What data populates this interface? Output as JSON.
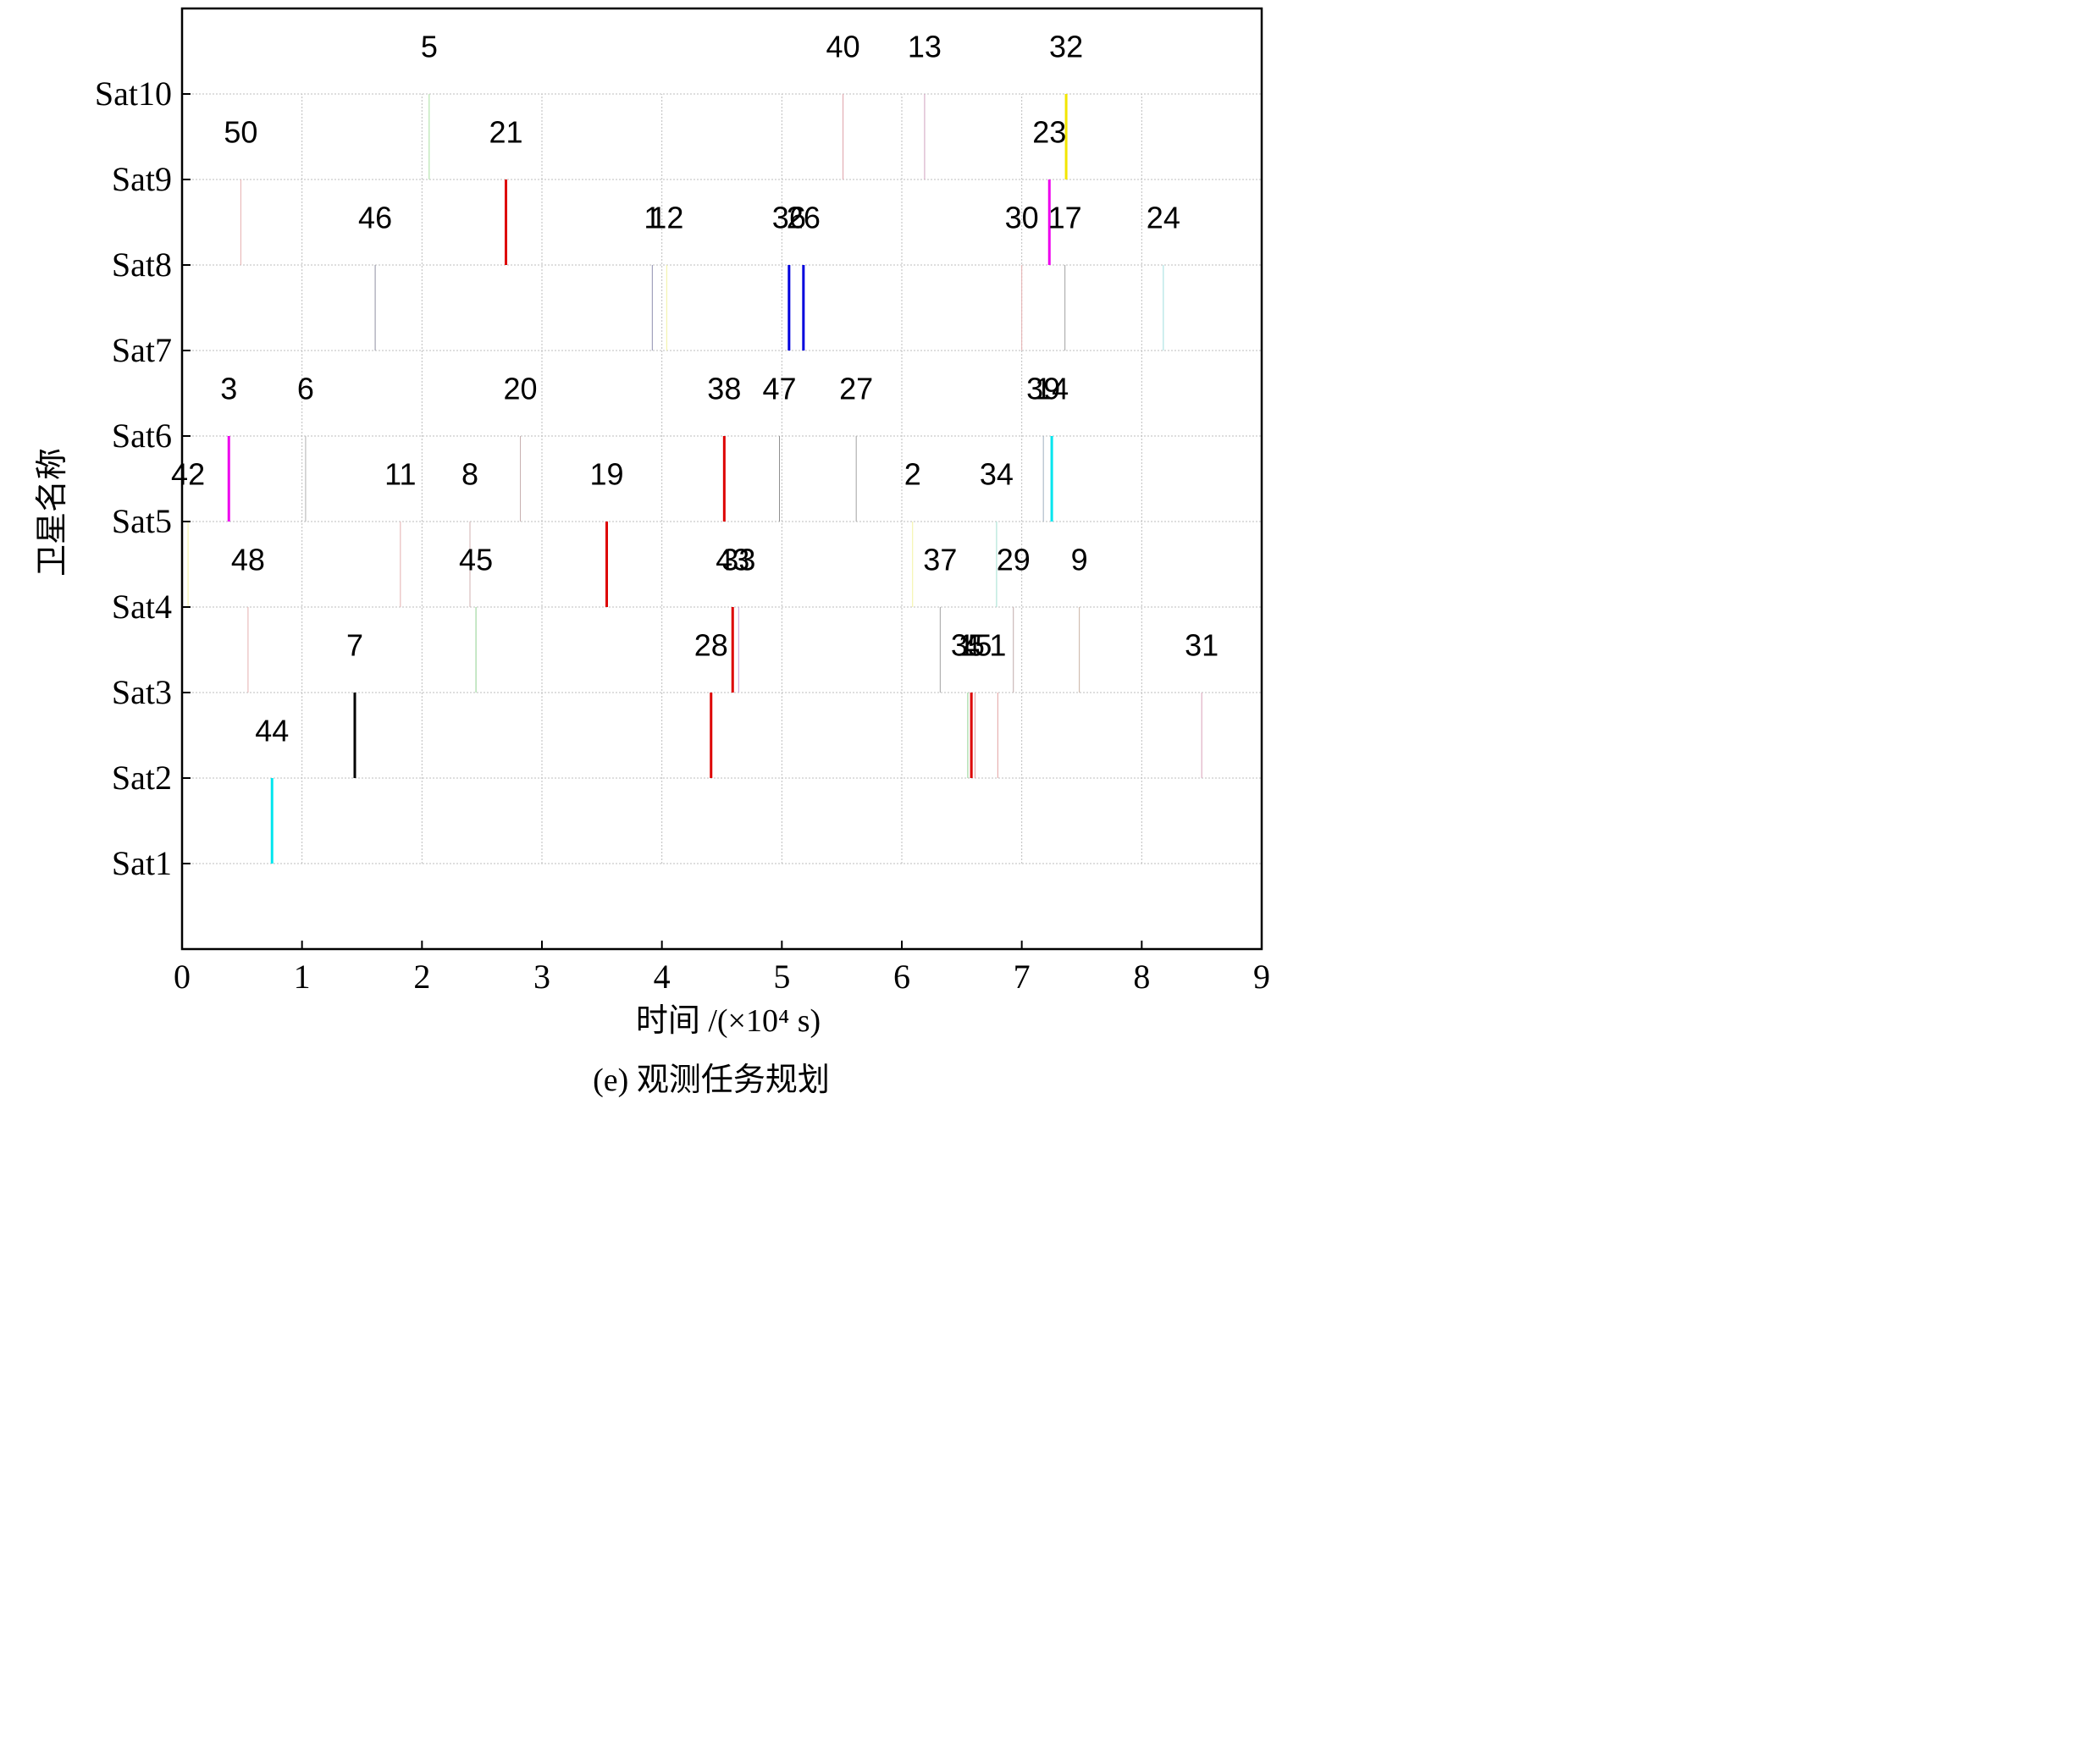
{
  "chart_data": {
    "type": "scatter",
    "caption": "(e) 观测任务规划",
    "xlabel": "时间 /(×10⁴ s)",
    "ylabel": "卫星名称",
    "xlim": [
      0,
      9
    ],
    "xticks": [
      0,
      1,
      2,
      3,
      4,
      5,
      6,
      7,
      8,
      9
    ],
    "xtick_labels": [
      "0",
      "1",
      "2",
      "3",
      "4",
      "5",
      "6",
      "7",
      "8",
      "9"
    ],
    "ylim": [
      0,
      11
    ],
    "yticks": [
      1,
      2,
      3,
      4,
      5,
      6,
      7,
      8,
      9,
      10
    ],
    "ytick_labels": [
      "Sat1",
      "Sat2",
      "Sat3",
      "Sat4",
      "Sat5",
      "Sat6",
      "Sat7",
      "Sat8",
      "Sat9",
      "Sat10"
    ],
    "grid": true,
    "tasks": [
      {
        "id": "44",
        "sat": 1,
        "t": 0.75,
        "color": "#00e5ee",
        "width": 3
      },
      {
        "id": "7",
        "sat": 2,
        "t": 1.44,
        "color": "#000000",
        "width": 3
      },
      {
        "id": "28",
        "sat": 2,
        "t": 4.41,
        "color": "#dd0000",
        "width": 3
      },
      {
        "id": "35",
        "sat": 2,
        "t": 6.55,
        "color": "#8fd18f",
        "width": 1
      },
      {
        "id": "4",
        "sat": 2,
        "t": 6.58,
        "color": "#dd0000",
        "width": 3
      },
      {
        "id": "15",
        "sat": 2,
        "t": 6.61,
        "color": "#e3a0a0",
        "width": 1
      },
      {
        "id": "1",
        "sat": 2,
        "t": 6.8,
        "color": "#e3a0a0",
        "width": 1
      },
      {
        "id": "31",
        "sat": 2,
        "t": 8.5,
        "color": "#d9a0b8",
        "width": 1
      },
      {
        "id": "48",
        "sat": 3,
        "t": 0.55,
        "color": "#e6b0b0",
        "width": 1
      },
      {
        "id": "45",
        "sat": 3,
        "t": 2.45,
        "color": "#8fd18f",
        "width": 1
      },
      {
        "id": "43",
        "sat": 3,
        "t": 4.59,
        "color": "#dd0000",
        "width": 3
      },
      {
        "id": "33",
        "sat": 3,
        "t": 4.64,
        "color": "#c8a0d8",
        "width": 1
      },
      {
        "id": "37",
        "sat": 3,
        "t": 6.32,
        "color": "#a0a0a0",
        "width": 1
      },
      {
        "id": "29",
        "sat": 3,
        "t": 6.93,
        "color": "#c0a8a8",
        "width": 1
      },
      {
        "id": "9",
        "sat": 3,
        "t": 7.48,
        "color": "#c8b0a0",
        "width": 1
      },
      {
        "id": "42",
        "sat": 4,
        "t": 0.05,
        "color": "#f2f2a0",
        "width": 1
      },
      {
        "id": "11",
        "sat": 4,
        "t": 1.82,
        "color": "#e6b0b0",
        "width": 1
      },
      {
        "id": "8",
        "sat": 4,
        "t": 2.4,
        "color": "#d0b0b0",
        "width": 1
      },
      {
        "id": "19",
        "sat": 4,
        "t": 3.54,
        "color": "#dd0000",
        "width": 3
      },
      {
        "id": "2",
        "sat": 4,
        "t": 6.09,
        "color": "#f2f2a0",
        "width": 1
      },
      {
        "id": "34",
        "sat": 4,
        "t": 6.79,
        "color": "#a0e0d0",
        "width": 1
      },
      {
        "id": "3",
        "sat": 5,
        "t": 0.39,
        "color": "#ee00ee",
        "width": 3
      },
      {
        "id": "6",
        "sat": 5,
        "t": 1.03,
        "color": "#b0b0b0",
        "width": 1
      },
      {
        "id": "20",
        "sat": 5,
        "t": 2.82,
        "color": "#c8b0b0",
        "width": 1
      },
      {
        "id": "38",
        "sat": 5,
        "t": 4.52,
        "color": "#dd0000",
        "width": 3
      },
      {
        "id": "47",
        "sat": 5,
        "t": 4.98,
        "color": "#909090",
        "width": 1
      },
      {
        "id": "27",
        "sat": 5,
        "t": 5.62,
        "color": "#a0a0a0",
        "width": 1
      },
      {
        "id": "39",
        "sat": 5,
        "t": 7.18,
        "color": "#a0b0c0",
        "width": 1
      },
      {
        "id": "14",
        "sat": 5,
        "t": 7.25,
        "color": "#00e5ee",
        "width": 3
      },
      {
        "id": "46",
        "sat": 7,
        "t": 1.61,
        "color": "#9090a0",
        "width": 1
      },
      {
        "id": "1",
        "sat": 7,
        "t": 3.92,
        "color": "#9090b0",
        "width": 1
      },
      {
        "id": "12",
        "sat": 7,
        "t": 4.04,
        "color": "#f2f2a0",
        "width": 1
      },
      {
        "id": "36",
        "sat": 7,
        "t": 5.06,
        "color": "#0000dd",
        "width": 3
      },
      {
        "id": "26",
        "sat": 7,
        "t": 5.18,
        "color": "#0000dd",
        "width": 3
      },
      {
        "id": "30",
        "sat": 7,
        "t": 7.0,
        "color": "#e6b0b0",
        "width": 1
      },
      {
        "id": "17",
        "sat": 7,
        "t": 7.36,
        "color": "#a0a0a0",
        "width": 1
      },
      {
        "id": "24",
        "sat": 7,
        "t": 8.18,
        "color": "#a0e0e0",
        "width": 1
      },
      {
        "id": "50",
        "sat": 8,
        "t": 0.49,
        "color": "#e6b0b0",
        "width": 1
      },
      {
        "id": "21",
        "sat": 8,
        "t": 2.7,
        "color": "#dd0000",
        "width": 3
      },
      {
        "id": "23",
        "sat": 8,
        "t": 7.23,
        "color": "#ee00ee",
        "width": 3
      },
      {
        "id": "5",
        "sat": 9,
        "t": 2.06,
        "color": "#a8e0a0",
        "width": 1
      },
      {
        "id": "40",
        "sat": 9,
        "t": 5.51,
        "color": "#e0a0a8",
        "width": 1
      },
      {
        "id": "13",
        "sat": 9,
        "t": 6.19,
        "color": "#d0a0c0",
        "width": 1
      },
      {
        "id": "32",
        "sat": 9,
        "t": 7.37,
        "color": "#f2e600",
        "width": 3
      }
    ],
    "colors": {
      "axis": "#000000",
      "grid": "#bdbdbd",
      "background": "#ffffff"
    }
  }
}
